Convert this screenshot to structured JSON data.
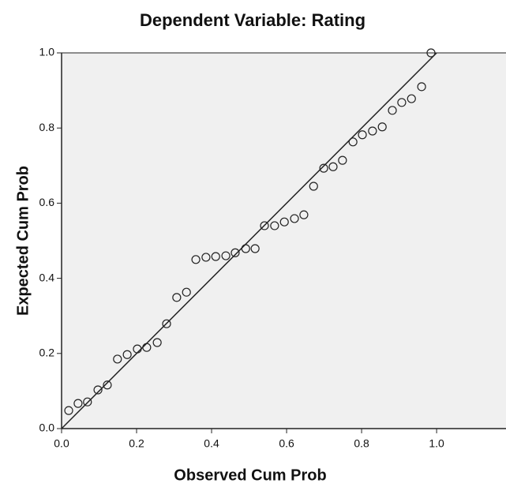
{
  "chart_data": {
    "type": "scatter",
    "title": "Dependent Variable: Rating",
    "x_label": "Observed Cum Prob",
    "y_label": "Expected Cum Prob",
    "xlim": [
      0,
      1.185
    ],
    "ylim": [
      0,
      1
    ],
    "xticks": [
      {
        "value": 0,
        "label": "0.0"
      },
      {
        "value": 0.2,
        "label": "0.2"
      },
      {
        "value": 0.4,
        "label": "0.4"
      },
      {
        "value": 0.6,
        "label": "0.6"
      },
      {
        "value": 0.8,
        "label": "0.8"
      },
      {
        "value": 1,
        "label": "1.0"
      }
    ],
    "yticks": [
      {
        "value": 0,
        "label": "0.0"
      },
      {
        "value": 0.2,
        "label": "0.2"
      },
      {
        "value": 0.4,
        "label": "0.4"
      },
      {
        "value": 0.6,
        "label": "0.6"
      },
      {
        "value": 0.8,
        "label": "0.8"
      },
      {
        "value": 1,
        "label": "1.0"
      }
    ],
    "reference_line": true,
    "color": "#222222",
    "background": "#f0f0f0",
    "x": [
      0.019,
      0.044,
      0.069,
      0.097,
      0.122,
      0.149,
      0.175,
      0.202,
      0.227,
      0.255,
      0.28,
      0.307,
      0.333,
      0.358,
      0.385,
      0.411,
      0.438,
      0.463,
      0.491,
      0.516,
      0.541,
      0.568,
      0.594,
      0.621,
      0.646,
      0.672,
      0.699,
      0.724,
      0.749,
      0.777,
      0.802,
      0.829,
      0.855,
      0.882,
      0.907,
      0.933,
      0.96,
      0.985
    ],
    "values": [
      0.048,
      0.067,
      0.071,
      0.103,
      0.116,
      0.185,
      0.197,
      0.212,
      0.216,
      0.229,
      0.279,
      0.349,
      0.363,
      0.45,
      0.456,
      0.458,
      0.46,
      0.468,
      0.479,
      0.479,
      0.54,
      0.54,
      0.55,
      0.559,
      0.569,
      0.645,
      0.693,
      0.697,
      0.714,
      0.763,
      0.782,
      0.792,
      0.803,
      0.847,
      0.868,
      0.878,
      0.91,
      1.0
    ]
  }
}
